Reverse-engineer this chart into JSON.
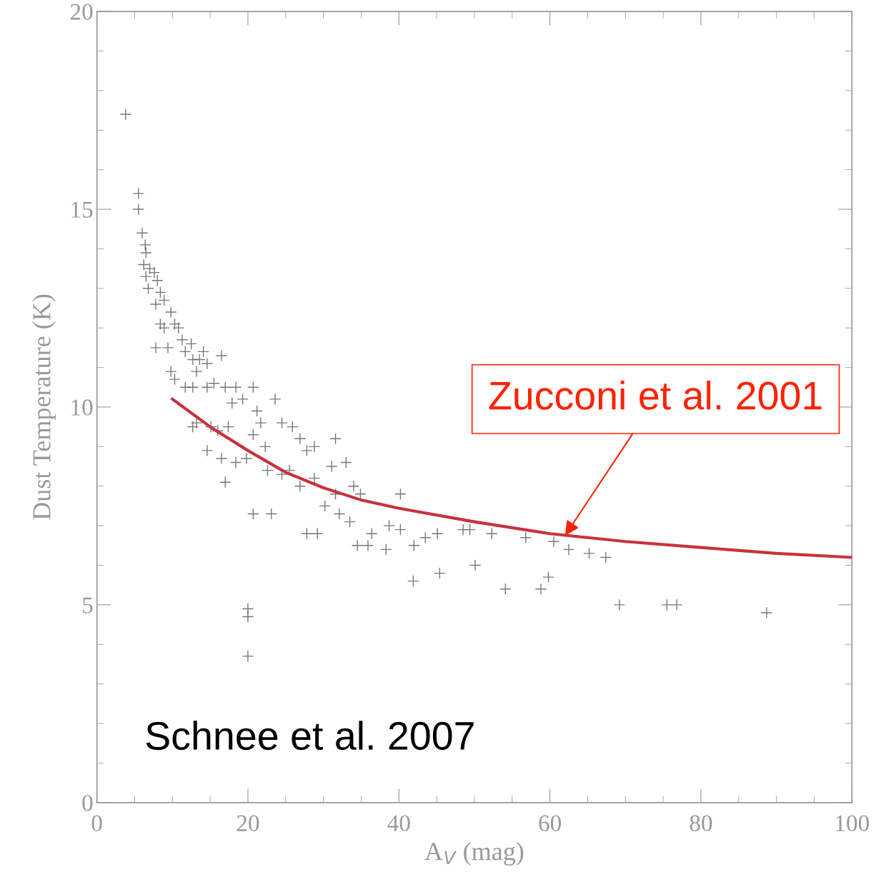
{
  "chart_data": {
    "type": "scatter",
    "xlabel": "A$_{V}$ (mag)",
    "ylabel": "Dust Temperature (K)",
    "xlim": [
      0,
      100
    ],
    "ylim": [
      0,
      20
    ],
    "xticks": [
      0,
      20,
      40,
      60,
      80,
      100
    ],
    "yticks": [
      0,
      5,
      10,
      15,
      20
    ],
    "grid": false,
    "annotations": [
      {
        "text": "Zucconi et al. 2001",
        "x": 62,
        "y": 6.75
      },
      "Schnee et al. 2007"
    ],
    "series": [
      {
        "color": "#555555",
        "marker": "cross",
        "x": [
          3.8,
          5.5,
          5.5,
          6.0,
          6.4,
          6.5,
          6.2,
          7.0,
          7.6,
          6.5,
          8.0,
          6.8,
          8.4,
          8.9,
          7.8,
          9.8,
          8.4,
          10.3,
          8.9,
          7.8,
          9.4,
          10.8,
          11.3,
          12.5,
          11.7,
          12.7,
          13.6,
          14.6,
          14.1,
          13.2,
          9.8,
          10.3,
          11.7,
          12.7,
          14.6,
          15.5,
          16.5,
          17.0,
          17.9,
          18.4,
          19.3,
          20.7,
          21.2,
          13.2,
          12.7,
          15.1,
          16.0,
          17.4,
          14.6,
          16.5,
          17.0,
          18.4,
          19.8,
          20.7,
          21.7,
          22.3,
          23.6,
          24.5,
          25.9,
          26.9,
          27.8,
          28.8,
          31.6,
          22.6,
          24.5,
          25.5,
          26.9,
          28.8,
          31.1,
          33.0,
          31.6,
          34.0,
          34.9,
          20.7,
          23.1,
          27.8,
          29.2,
          30.2,
          32.1,
          33.5,
          34.5,
          35.9,
          36.4,
          38.3,
          38.7,
          40.2,
          40.2,
          42.0,
          43.5,
          45.1,
          41.9,
          45.4,
          48.5,
          49.4,
          50.1,
          52.3,
          54.1,
          56.8,
          58.8,
          59.8,
          60.5,
          62.5,
          65.2,
          67.4,
          69.2,
          75.5,
          76.8,
          88.7,
          20.0,
          20.0,
          20.0
        ],
        "values": [
          17.4,
          15.4,
          15.0,
          14.4,
          14.1,
          13.9,
          13.6,
          13.5,
          13.4,
          13.3,
          13.2,
          13.0,
          12.9,
          12.7,
          12.6,
          12.4,
          12.1,
          12.1,
          12.0,
          11.5,
          11.5,
          12.0,
          11.7,
          11.6,
          11.4,
          11.2,
          11.2,
          11.1,
          11.4,
          10.9,
          10.9,
          10.7,
          10.5,
          10.5,
          10.5,
          10.6,
          11.3,
          10.5,
          10.1,
          10.5,
          10.2,
          10.5,
          9.9,
          9.6,
          9.5,
          9.5,
          9.4,
          9.5,
          8.9,
          8.7,
          8.1,
          8.6,
          8.7,
          9.3,
          9.6,
          9.0,
          10.2,
          9.6,
          9.5,
          9.2,
          8.9,
          9.0,
          9.2,
          8.4,
          8.3,
          8.4,
          8.0,
          8.2,
          8.5,
          8.6,
          7.8,
          8.0,
          7.8,
          7.3,
          7.3,
          6.8,
          6.8,
          7.5,
          7.3,
          7.1,
          6.5,
          6.5,
          6.8,
          6.4,
          7.0,
          6.9,
          7.8,
          6.5,
          6.7,
          6.8,
          5.6,
          5.8,
          6.9,
          6.9,
          6.0,
          6.8,
          5.4,
          6.7,
          5.4,
          5.7,
          6.6,
          6.4,
          6.3,
          6.2,
          5.0,
          5.0,
          5.0,
          4.8,
          4.9,
          4.7,
          3.7
        ]
      },
      {
        "type": "line",
        "color": "#c8323c",
        "marker": "none",
        "line_style": "solid",
        "x": [
          10,
          15,
          20,
          25,
          30,
          35,
          40,
          50,
          60,
          70,
          80,
          90,
          100
        ],
        "values": [
          10.2,
          9.5,
          8.9,
          8.35,
          7.96,
          7.65,
          7.44,
          7.1,
          6.8,
          6.6,
          6.45,
          6.3,
          6.2
        ]
      }
    ]
  }
}
